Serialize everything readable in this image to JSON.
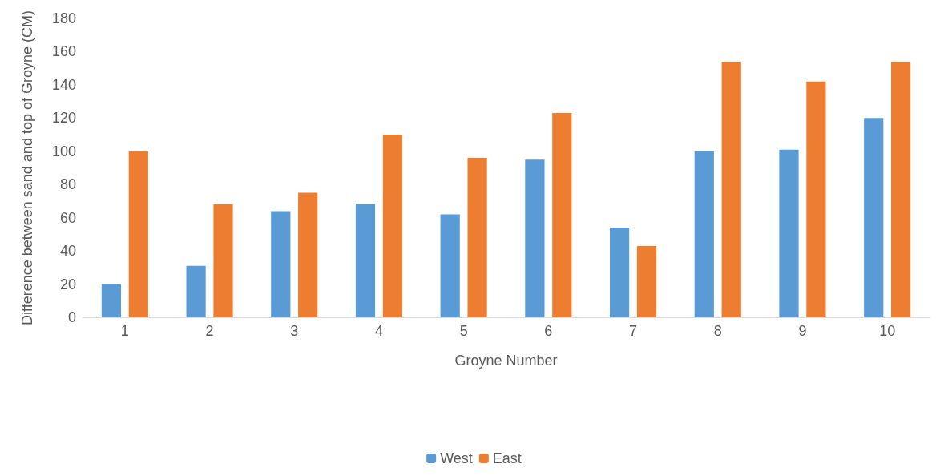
{
  "chart_data": {
    "type": "bar",
    "xlabel": "Groyne Number",
    "ylabel": "Difference between sand and top of Groyne (CM)",
    "categories": [
      "1",
      "2",
      "3",
      "4",
      "5",
      "6",
      "7",
      "8",
      "9",
      "10"
    ],
    "series": [
      {
        "name": "West",
        "color": "#5b9bd5",
        "values": [
          20,
          31,
          64,
          68,
          62,
          95,
          54,
          100,
          101,
          120
        ]
      },
      {
        "name": "East",
        "color": "#ed7d31",
        "values": [
          100,
          68,
          75,
          110,
          96,
          123,
          43,
          154,
          142,
          154
        ]
      }
    ],
    "ylim": [
      0,
      180
    ],
    "yticks": [
      0,
      20,
      40,
      60,
      80,
      100,
      120,
      140,
      160,
      180
    ],
    "grid": false,
    "legend": "bottom"
  }
}
